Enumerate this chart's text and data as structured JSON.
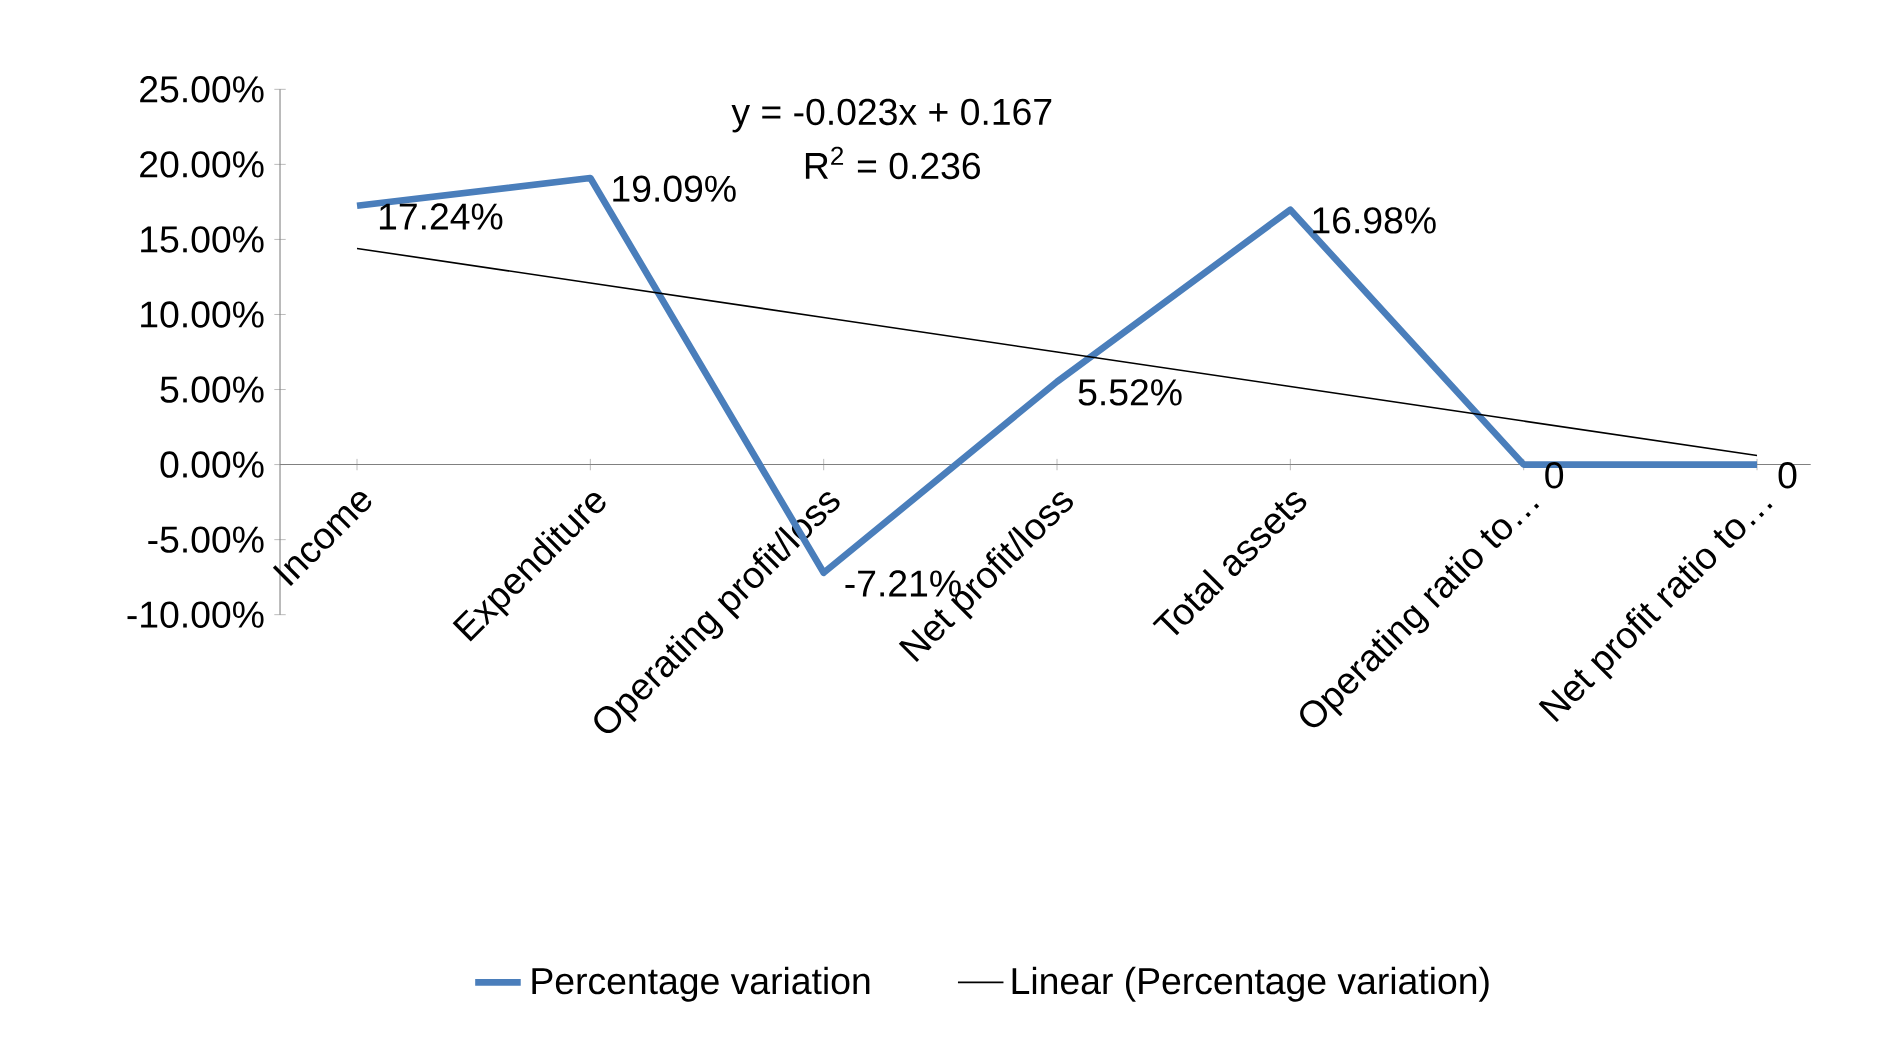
{
  "chart_data": {
    "type": "line",
    "categories": [
      "Income",
      "Expenditure",
      "Operating profit/loss",
      "Net profit/loss",
      "Total assets",
      "Operating ratio to…",
      "Net profit ratio to…"
    ],
    "series": [
      {
        "name": "Percentage variation",
        "color": "#4a7ebb",
        "values": [
          17.24,
          19.09,
          -7.21,
          5.52,
          16.98,
          0,
          0
        ],
        "value_labels": [
          "17.24%",
          "19.09%",
          "-7.21%",
          "5.52%",
          "16.98%",
          "0",
          "0"
        ]
      },
      {
        "name": "Linear (Percentage variation)",
        "type": "line",
        "color": "#000000",
        "values": [
          14.4,
          12.1,
          9.8,
          7.5,
          5.2,
          2.9,
          0.6
        ]
      }
    ],
    "ylim": [
      -10,
      25
    ],
    "yticks": [
      {
        "value": -10,
        "label": "-10.00%"
      },
      {
        "value": -5,
        "label": "-5.00%"
      },
      {
        "value": 0,
        "label": "0.00%"
      },
      {
        "value": 5,
        "label": "5.00%"
      },
      {
        "value": 10,
        "label": "10.00%"
      },
      {
        "value": 15,
        "label": "15.00%"
      },
      {
        "value": 20,
        "label": "20.00%"
      },
      {
        "value": 25,
        "label": "25.00%"
      }
    ],
    "annotations": [
      "y = -0.023x + 0.167",
      "R$^{2}$ = 0.236"
    ],
    "legend": "bottom",
    "grid": false,
    "marker": "none",
    "line_style": "solid"
  }
}
